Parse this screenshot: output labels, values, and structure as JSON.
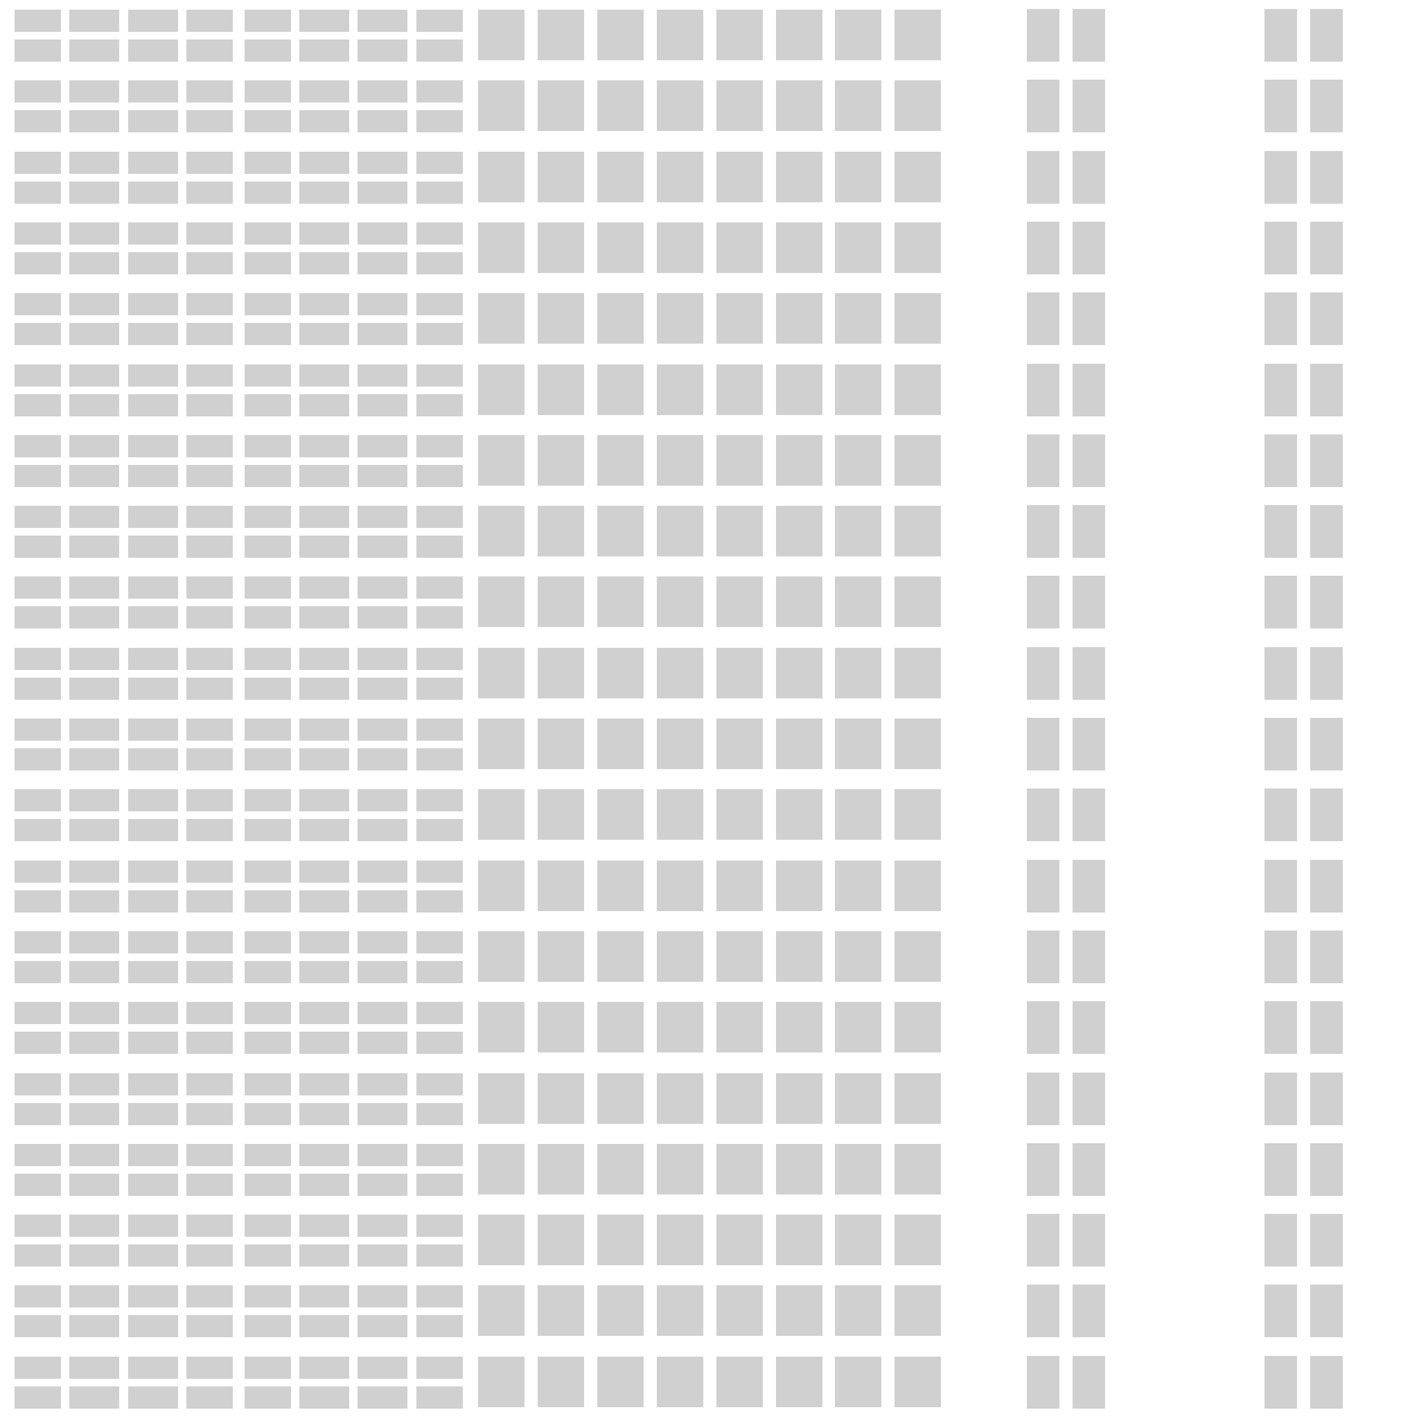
{
  "palette": {
    "background": "#ffffff",
    "tile": "#d0d0d0"
  },
  "pattern": {
    "rows": 20,
    "groups": [
      {
        "name": "wide-flat-bars",
        "columns": 8,
        "tiles_per_cell": 2,
        "arrangement": "stacked"
      },
      {
        "name": "squares",
        "columns": 8,
        "tiles_per_cell": 1,
        "arrangement": "single"
      },
      {
        "name": "narrow-bars-center",
        "columns": 2,
        "tiles_per_cell": 1,
        "arrangement": "single"
      },
      {
        "name": "narrow-bars-right",
        "columns": 2,
        "tiles_per_cell": 1,
        "arrangement": "single"
      }
    ]
  }
}
